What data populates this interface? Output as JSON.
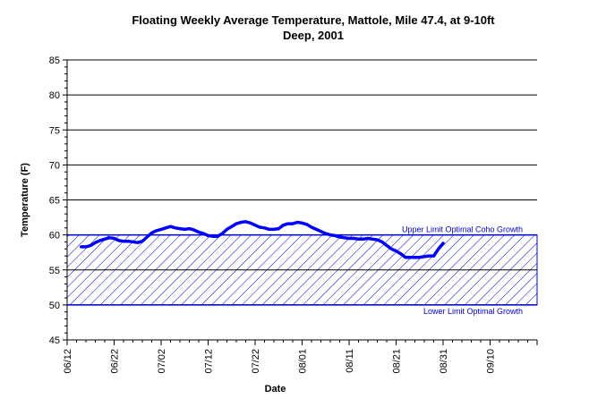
{
  "chart_data": {
    "type": "line",
    "title_line1": "Floating Weekly Average Temperature, Mattole, Mile 47.4, at 9-10ft",
    "title_line2": "Deep, 2001",
    "xlabel": "Date",
    "ylabel": "Temperature (F)",
    "ylim": [
      45,
      85
    ],
    "yticks": [
      45,
      50,
      55,
      60,
      65,
      70,
      75,
      80,
      85
    ],
    "xticks": [
      {
        "label": "06/12",
        "day": 0
      },
      {
        "label": "06/22",
        "day": 10
      },
      {
        "label": "07/02",
        "day": 20
      },
      {
        "label": "07/12",
        "day": 30
      },
      {
        "label": "07/22",
        "day": 40
      },
      {
        "label": "08/01",
        "day": 50
      },
      {
        "label": "08/11",
        "day": 60
      },
      {
        "label": "08/21",
        "day": 70
      },
      {
        "label": "08/31",
        "day": 80
      },
      {
        "label": "09/10",
        "day": 90
      }
    ],
    "xlim_days": [
      0,
      100
    ],
    "grid": "horizontal",
    "band": {
      "lower": 50,
      "upper": 60,
      "upper_label": "Upper Limit Optimal Coho Growth",
      "lower_label": "Lower Limit Optimal Growth",
      "fill_pattern": "diagonal-hatch",
      "color": "#0000cc"
    },
    "series": [
      {
        "color": "#0000ff",
        "points": [
          [
            3,
            58.3
          ],
          [
            4,
            58.3
          ],
          [
            5,
            58.5
          ],
          [
            6,
            58.9
          ],
          [
            7,
            59.2
          ],
          [
            8,
            59.4
          ],
          [
            9,
            59.6
          ],
          [
            10,
            59.5
          ],
          [
            11,
            59.2
          ],
          [
            12,
            59.1
          ],
          [
            13,
            59.1
          ],
          [
            14,
            59.0
          ],
          [
            15,
            58.9
          ],
          [
            16,
            59.1
          ],
          [
            17,
            59.7
          ],
          [
            18,
            60.3
          ],
          [
            19,
            60.6
          ],
          [
            20,
            60.8
          ],
          [
            21,
            61.0
          ],
          [
            22,
            61.2
          ],
          [
            23,
            61.0
          ],
          [
            24,
            60.9
          ],
          [
            25,
            60.8
          ],
          [
            26,
            60.9
          ],
          [
            27,
            60.7
          ],
          [
            28,
            60.4
          ],
          [
            29,
            60.2
          ],
          [
            30,
            59.9
          ],
          [
            31,
            59.8
          ],
          [
            32,
            59.8
          ],
          [
            33,
            60.2
          ],
          [
            34,
            60.8
          ],
          [
            35,
            61.2
          ],
          [
            36,
            61.6
          ],
          [
            37,
            61.8
          ],
          [
            38,
            61.9
          ],
          [
            39,
            61.7
          ],
          [
            40,
            61.4
          ],
          [
            41,
            61.1
          ],
          [
            42,
            61.0
          ],
          [
            43,
            60.8
          ],
          [
            44,
            60.8
          ],
          [
            45,
            60.9
          ],
          [
            46,
            61.4
          ],
          [
            47,
            61.6
          ],
          [
            48,
            61.6
          ],
          [
            49,
            61.8
          ],
          [
            50,
            61.7
          ],
          [
            51,
            61.5
          ],
          [
            52,
            61.1
          ],
          [
            53,
            60.8
          ],
          [
            54,
            60.5
          ],
          [
            55,
            60.2
          ],
          [
            56,
            60.0
          ],
          [
            57,
            59.9
          ],
          [
            58,
            59.7
          ],
          [
            59,
            59.6
          ],
          [
            60,
            59.5
          ],
          [
            61,
            59.5
          ],
          [
            62,
            59.4
          ],
          [
            63,
            59.4
          ],
          [
            64,
            59.5
          ],
          [
            65,
            59.4
          ],
          [
            66,
            59.3
          ],
          [
            67,
            59.0
          ],
          [
            68,
            58.5
          ],
          [
            69,
            58.0
          ],
          [
            70,
            57.7
          ],
          [
            71,
            57.3
          ],
          [
            72,
            56.8
          ],
          [
            73,
            56.8
          ],
          [
            74,
            56.8
          ],
          [
            75,
            56.8
          ],
          [
            76,
            56.9
          ],
          [
            77,
            57.0
          ],
          [
            78,
            57.0
          ],
          [
            79,
            58.0
          ],
          [
            80,
            58.8
          ]
        ]
      }
    ]
  }
}
